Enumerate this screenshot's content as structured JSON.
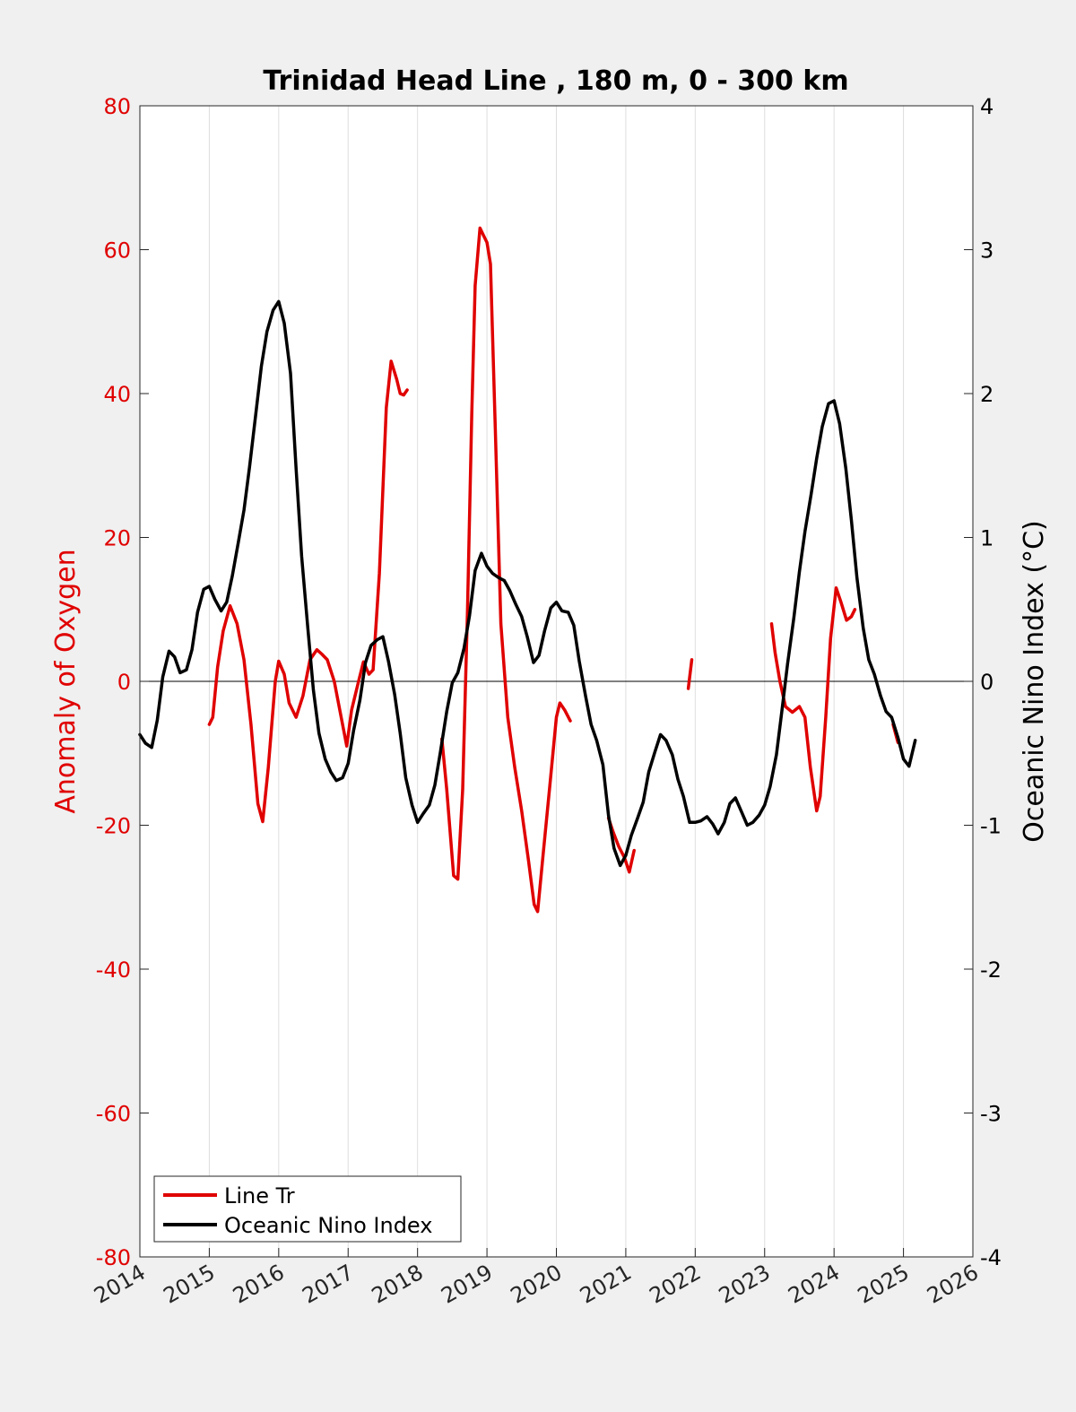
{
  "chart_data": {
    "type": "line",
    "title": "Trinidad Head Line , 180 m, 0 - 300 km",
    "ylabel_left": "Anomaly of Oxygen",
    "ylabel_right": "Oceanic Nino Index (°C)",
    "xlim": [
      2014,
      2026
    ],
    "ylim_left": [
      -80,
      80
    ],
    "ylim_right": [
      -4,
      4
    ],
    "x_ticks": [
      "2014",
      "2015",
      "2016",
      "2017",
      "2018",
      "2019",
      "2020",
      "2021",
      "2022",
      "2023",
      "2024",
      "2025",
      "2026"
    ],
    "y_ticks_left": [
      "80",
      "60",
      "40",
      "20",
      "0",
      "-20",
      "-40",
      "-60",
      "-80"
    ],
    "y_ticks_right": [
      "4",
      "3",
      "2",
      "1",
      "0",
      "-1",
      "-2",
      "-3",
      "-4"
    ],
    "grid": "vertical",
    "legend_position": "bottom-left",
    "colors": {
      "oxygen": "#e00000",
      "oni": "#000000",
      "grid": "#dedede",
      "background": "#ffffff",
      "figure": "#f0f0f0"
    },
    "series": [
      {
        "name": "Line Tr",
        "axis": "left",
        "segments": [
          [
            [
              2015.0,
              -6
            ],
            [
              2015.05,
              -5
            ],
            [
              2015.12,
              2
            ],
            [
              2015.2,
              7
            ],
            [
              2015.3,
              10.5
            ],
            [
              2015.4,
              8
            ],
            [
              2015.5,
              3
            ],
            [
              2015.6,
              -6
            ],
            [
              2015.7,
              -17
            ],
            [
              2015.77,
              -19.5
            ],
            [
              2015.85,
              -12
            ],
            [
              2015.95,
              0
            ],
            [
              2016.0,
              2.8
            ],
            [
              2016.08,
              1
            ],
            [
              2016.15,
              -3
            ],
            [
              2016.25,
              -5
            ],
            [
              2016.35,
              -2
            ],
            [
              2016.45,
              3
            ],
            [
              2016.55,
              4.4
            ],
            [
              2016.62,
              3.8
            ],
            [
              2016.7,
              3
            ],
            [
              2016.8,
              0
            ],
            [
              2016.9,
              -5
            ],
            [
              2016.98,
              -9
            ],
            [
              2017.05,
              -4
            ],
            [
              2017.15,
              0
            ],
            [
              2017.22,
              2.7
            ],
            [
              2017.3,
              1
            ],
            [
              2017.36,
              1.6
            ],
            [
              2017.45,
              15
            ],
            [
              2017.55,
              38
            ],
            [
              2017.62,
              44.5
            ],
            [
              2017.7,
              42
            ],
            [
              2017.75,
              40
            ],
            [
              2017.8,
              39.8
            ],
            [
              2017.85,
              40.5
            ]
          ],
          [
            [
              2018.35,
              -8
            ],
            [
              2018.42,
              -15
            ],
            [
              2018.52,
              -27
            ],
            [
              2018.58,
              -27.5
            ],
            [
              2018.65,
              -15
            ],
            [
              2018.72,
              10
            ],
            [
              2018.78,
              37
            ],
            [
              2018.83,
              55
            ],
            [
              2018.9,
              63
            ],
            [
              2018.95,
              62
            ],
            [
              2019.0,
              61
            ],
            [
              2019.05,
              58
            ],
            [
              2019.12,
              35
            ],
            [
              2019.2,
              8
            ],
            [
              2019.3,
              -5
            ],
            [
              2019.4,
              -12
            ],
            [
              2019.5,
              -18
            ],
            [
              2019.6,
              -25
            ],
            [
              2019.68,
              -31
            ],
            [
              2019.73,
              -32
            ],
            [
              2019.8,
              -25
            ],
            [
              2019.9,
              -15
            ],
            [
              2020.0,
              -5
            ],
            [
              2020.05,
              -3
            ],
            [
              2020.12,
              -4
            ],
            [
              2020.2,
              -5.5
            ]
          ],
          [
            [
              2020.75,
              -19
            ],
            [
              2020.82,
              -21
            ],
            [
              2020.9,
              -23
            ],
            [
              2020.98,
              -24.5
            ],
            [
              2021.05,
              -26.5
            ],
            [
              2021.12,
              -23.5
            ]
          ],
          [
            [
              2021.9,
              -1
            ],
            [
              2021.95,
              3
            ]
          ],
          [
            [
              2023.1,
              8
            ],
            [
              2023.15,
              4
            ],
            [
              2023.22,
              0
            ],
            [
              2023.3,
              -3.5
            ],
            [
              2023.4,
              -4.3
            ],
            [
              2023.5,
              -3.5
            ],
            [
              2023.58,
              -5
            ],
            [
              2023.66,
              -12
            ],
            [
              2023.75,
              -18
            ],
            [
              2023.8,
              -16
            ],
            [
              2023.88,
              -5
            ],
            [
              2023.95,
              6
            ],
            [
              2024.03,
              13
            ],
            [
              2024.1,
              11
            ],
            [
              2024.18,
              8.5
            ],
            [
              2024.25,
              9
            ],
            [
              2024.3,
              10
            ]
          ],
          [
            [
              2024.85,
              -6
            ],
            [
              2024.92,
              -8.5
            ]
          ]
        ]
      },
      {
        "name": "Oceanic Nino Index",
        "axis": "right",
        "segments": [
          [
            [
              2014.0,
              -0.37
            ],
            [
              2014.08,
              -0.43
            ],
            [
              2014.17,
              -0.46
            ],
            [
              2014.25,
              -0.27
            ],
            [
              2014.33,
              0.03
            ],
            [
              2014.42,
              0.21
            ],
            [
              2014.5,
              0.17
            ],
            [
              2014.58,
              0.06
            ],
            [
              2014.67,
              0.08
            ],
            [
              2014.75,
              0.22
            ],
            [
              2014.83,
              0.48
            ],
            [
              2014.92,
              0.64
            ],
            [
              2015.0,
              0.66
            ],
            [
              2015.08,
              0.57
            ],
            [
              2015.17,
              0.49
            ],
            [
              2015.25,
              0.55
            ],
            [
              2015.33,
              0.73
            ],
            [
              2015.42,
              0.97
            ],
            [
              2015.5,
              1.19
            ],
            [
              2015.58,
              1.49
            ],
            [
              2015.67,
              1.86
            ],
            [
              2015.75,
              2.19
            ],
            [
              2015.83,
              2.43
            ],
            [
              2015.92,
              2.58
            ],
            [
              2016.0,
              2.64
            ],
            [
              2016.08,
              2.49
            ],
            [
              2016.17,
              2.14
            ],
            [
              2016.25,
              1.48
            ],
            [
              2016.33,
              0.87
            ],
            [
              2016.42,
              0.37
            ],
            [
              2016.5,
              -0.06
            ],
            [
              2016.58,
              -0.36
            ],
            [
              2016.67,
              -0.54
            ],
            [
              2016.75,
              -0.63
            ],
            [
              2016.83,
              -0.69
            ],
            [
              2016.92,
              -0.67
            ],
            [
              2017.0,
              -0.57
            ],
            [
              2017.08,
              -0.34
            ],
            [
              2017.17,
              -0.13
            ],
            [
              2017.25,
              0.13
            ],
            [
              2017.33,
              0.25
            ],
            [
              2017.42,
              0.29
            ],
            [
              2017.5,
              0.31
            ],
            [
              2017.58,
              0.14
            ],
            [
              2017.67,
              -0.09
            ],
            [
              2017.75,
              -0.36
            ],
            [
              2017.83,
              -0.67
            ],
            [
              2017.92,
              -0.86
            ],
            [
              2018.0,
              -0.98
            ],
            [
              2018.08,
              -0.92
            ],
            [
              2018.17,
              -0.86
            ],
            [
              2018.25,
              -0.72
            ],
            [
              2018.33,
              -0.49
            ],
            [
              2018.42,
              -0.21
            ],
            [
              2018.5,
              -0.01
            ],
            [
              2018.58,
              0.06
            ],
            [
              2018.67,
              0.23
            ],
            [
              2018.75,
              0.46
            ],
            [
              2018.83,
              0.77
            ],
            [
              2018.92,
              0.89
            ],
            [
              2019.0,
              0.8
            ],
            [
              2019.08,
              0.75
            ],
            [
              2019.17,
              0.72
            ],
            [
              2019.25,
              0.7
            ],
            [
              2019.33,
              0.63
            ],
            [
              2019.42,
              0.53
            ],
            [
              2019.5,
              0.45
            ],
            [
              2019.58,
              0.31
            ],
            [
              2019.67,
              0.13
            ],
            [
              2019.75,
              0.18
            ],
            [
              2019.83,
              0.35
            ],
            [
              2019.92,
              0.51
            ],
            [
              2020.0,
              0.55
            ],
            [
              2020.08,
              0.49
            ],
            [
              2020.17,
              0.48
            ],
            [
              2020.25,
              0.39
            ],
            [
              2020.33,
              0.14
            ],
            [
              2020.42,
              -0.1
            ],
            [
              2020.5,
              -0.3
            ],
            [
              2020.58,
              -0.41
            ],
            [
              2020.67,
              -0.58
            ],
            [
              2020.75,
              -0.93
            ],
            [
              2020.83,
              -1.16
            ],
            [
              2020.92,
              -1.28
            ],
            [
              2021.0,
              -1.21
            ],
            [
              2021.08,
              -1.07
            ],
            [
              2021.17,
              -0.95
            ],
            [
              2021.25,
              -0.84
            ],
            [
              2021.33,
              -0.63
            ],
            [
              2021.42,
              -0.49
            ],
            [
              2021.5,
              -0.37
            ],
            [
              2021.58,
              -0.41
            ],
            [
              2021.67,
              -0.51
            ],
            [
              2021.75,
              -0.68
            ],
            [
              2021.83,
              -0.8
            ],
            [
              2021.92,
              -0.98
            ],
            [
              2022.0,
              -0.98
            ],
            [
              2022.08,
              -0.97
            ],
            [
              2022.17,
              -0.94
            ],
            [
              2022.25,
              -0.99
            ],
            [
              2022.33,
              -1.06
            ],
            [
              2022.42,
              -0.98
            ],
            [
              2022.5,
              -0.85
            ],
            [
              2022.58,
              -0.81
            ],
            [
              2022.67,
              -0.91
            ],
            [
              2022.75,
              -1.0
            ],
            [
              2022.83,
              -0.98
            ],
            [
              2022.92,
              -0.93
            ],
            [
              2023.0,
              -0.86
            ],
            [
              2023.08,
              -0.73
            ],
            [
              2023.17,
              -0.51
            ],
            [
              2023.25,
              -0.2
            ],
            [
              2023.33,
              0.12
            ],
            [
              2023.42,
              0.44
            ],
            [
              2023.5,
              0.76
            ],
            [
              2023.58,
              1.04
            ],
            [
              2023.67,
              1.3
            ],
            [
              2023.75,
              1.55
            ],
            [
              2023.83,
              1.77
            ],
            [
              2023.92,
              1.93
            ],
            [
              2024.0,
              1.95
            ],
            [
              2024.08,
              1.79
            ],
            [
              2024.17,
              1.48
            ],
            [
              2024.25,
              1.12
            ],
            [
              2024.33,
              0.72
            ],
            [
              2024.42,
              0.37
            ],
            [
              2024.5,
              0.15
            ],
            [
              2024.58,
              0.05
            ],
            [
              2024.67,
              -0.1
            ],
            [
              2024.75,
              -0.21
            ],
            [
              2024.83,
              -0.25
            ],
            [
              2024.92,
              -0.39
            ],
            [
              2025.0,
              -0.54
            ],
            [
              2025.08,
              -0.59
            ],
            [
              2025.17,
              -0.41
            ]
          ]
        ]
      }
    ]
  }
}
